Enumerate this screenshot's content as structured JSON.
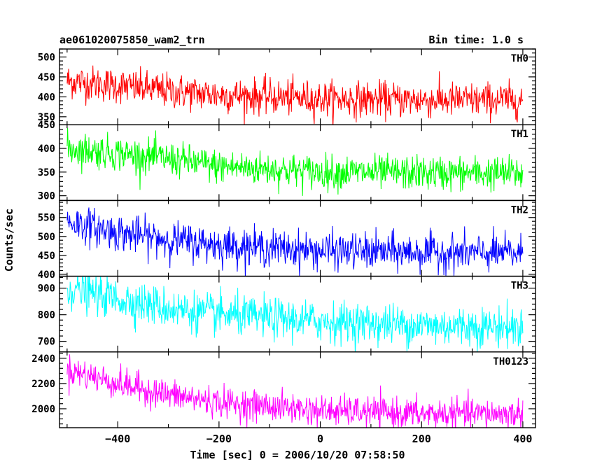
{
  "header": {
    "title": "ae061020075850_wam2_trn",
    "bin_time": "Bin time: 1.0 s"
  },
  "chart_data": {
    "type": "line",
    "title": "ae061020075850_wam2_trn",
    "subtitle": "Bin time: 1.0 s",
    "xlabel": "Time [sec] 0 = 2006/10/20 07:58:50",
    "ylabel": "Counts/sec",
    "xlim": [
      -515,
      425
    ],
    "x_ticks": [
      -400,
      -200,
      0,
      200,
      400
    ],
    "x_tick_labels": [
      "−400",
      "−200",
      "0",
      "200",
      "400"
    ],
    "bin_time_s": 1.0,
    "x_range": [
      -500,
      400
    ],
    "grid": false,
    "panels": [
      {
        "name": "TH0",
        "color": "#ff0000",
        "ylim": [
          330,
          520
        ],
        "y_ticks": [
          350,
          400,
          450,
          500
        ],
        "y_tick_labels": [
          "350",
          "400",
          "450",
          "500"
        ],
        "trend": [
          [
            -500,
            440
          ],
          [
            -400,
            428
          ],
          [
            -300,
            415
          ],
          [
            -200,
            405
          ],
          [
            0,
            395
          ],
          [
            200,
            392
          ],
          [
            400,
            392
          ]
        ],
        "noise": 22
      },
      {
        "name": "TH1",
        "color": "#00ff00",
        "ylim": [
          290,
          450
        ],
        "y_ticks": [
          300,
          350,
          400,
          450
        ],
        "y_tick_labels": [
          "300",
          "350",
          "400",
          "450"
        ],
        "trend": [
          [
            -500,
            400
          ],
          [
            -400,
            390
          ],
          [
            -300,
            378
          ],
          [
            -200,
            362
          ],
          [
            0,
            350
          ],
          [
            200,
            348
          ],
          [
            400,
            347
          ]
        ],
        "noise": 18
      },
      {
        "name": "TH2",
        "color": "#0000ff",
        "ylim": [
          395,
          595
        ],
        "y_ticks": [
          400,
          450,
          500,
          550
        ],
        "y_tick_labels": [
          "400",
          "450",
          "500",
          "550"
        ],
        "trend": [
          [
            -500,
            540
          ],
          [
            -400,
            510
          ],
          [
            -300,
            492
          ],
          [
            -200,
            478
          ],
          [
            0,
            462
          ],
          [
            200,
            458
          ],
          [
            400,
            455
          ]
        ],
        "noise": 24
      },
      {
        "name": "TH3",
        "color": "#00ffff",
        "ylim": [
          660,
          945
        ],
        "y_ticks": [
          700,
          800,
          900
        ],
        "y_tick_labels": [
          "700",
          "800",
          "900"
        ],
        "trend": [
          [
            -500,
            900
          ],
          [
            -400,
            860
          ],
          [
            -300,
            825
          ],
          [
            -200,
            800
          ],
          [
            0,
            775
          ],
          [
            200,
            760
          ],
          [
            400,
            752
          ]
        ],
        "noise": 38
      },
      {
        "name": "TH0123",
        "color": "#ff00ff",
        "ylim": [
          1850,
          2450
        ],
        "y_ticks": [
          2000,
          2200,
          2400
        ],
        "y_tick_labels": [
          "2000",
          "2200",
          "2400"
        ],
        "trend": [
          [
            -500,
            2310
          ],
          [
            -400,
            2200
          ],
          [
            -300,
            2110
          ],
          [
            -200,
            2050
          ],
          [
            0,
            1985
          ],
          [
            200,
            1960
          ],
          [
            400,
            1960
          ]
        ],
        "noise": 60
      }
    ]
  }
}
